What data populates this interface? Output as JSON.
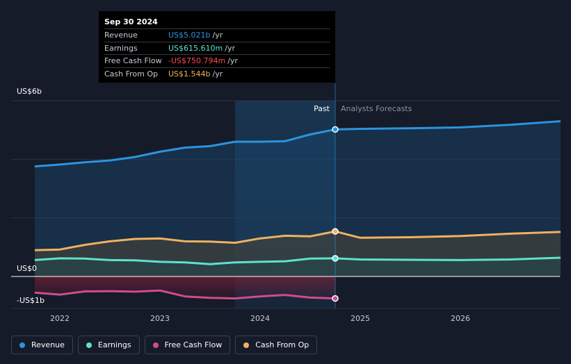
{
  "tooltip": {
    "date": "Sep 30 2024",
    "rows": [
      {
        "label": "Revenue",
        "value": "US$5.021b",
        "unit": "/yr",
        "color": "#2b94e0"
      },
      {
        "label": "Earnings",
        "value": "US$615.610m",
        "unit": "/yr",
        "color": "#5ee2cc"
      },
      {
        "label": "Free Cash Flow",
        "value": "-US$750.794m",
        "unit": "/yr",
        "color": "#ff4c4c"
      },
      {
        "label": "Cash From Op",
        "value": "US$1.544b",
        "unit": "/yr",
        "color": "#f2b160"
      }
    ]
  },
  "legend": [
    {
      "label": "Revenue",
      "color": "#2b94e0"
    },
    {
      "label": "Earnings",
      "color": "#5ee2cc"
    },
    {
      "label": "Free Cash Flow",
      "color": "#d14b8e"
    },
    {
      "label": "Cash From Op",
      "color": "#f2b160"
    }
  ],
  "chart_data": {
    "type": "line",
    "unit": "US$ billions",
    "y_labels": [
      {
        "text": "US$6b",
        "value": 6
      },
      {
        "text": "US$0",
        "value": 0
      },
      {
        "text": "-US$1b",
        "value": -1
      }
    ],
    "ylim": [
      -1,
      6
    ],
    "xlim": [
      2021.7,
      2027.0
    ],
    "x_ticks": [
      {
        "label": "2022",
        "value": 2022
      },
      {
        "label": "2023",
        "value": 2023
      },
      {
        "label": "2024",
        "value": 2024
      },
      {
        "label": "2025",
        "value": 2025
      },
      {
        "label": "2026",
        "value": 2026
      }
    ],
    "past_label": "Past",
    "forecast_label": "Analysts Forecasts",
    "divider_x": 2024.75,
    "highlight_start_x": 2023.75,
    "series": [
      {
        "name": "Revenue",
        "color": "#2b94e0",
        "area": true,
        "past": [
          [
            2021.75,
            3.76
          ],
          [
            2022,
            3.82
          ],
          [
            2022.25,
            3.9
          ],
          [
            2022.5,
            3.96
          ],
          [
            2022.75,
            4.08
          ],
          [
            2023,
            4.26
          ],
          [
            2023.25,
            4.4
          ],
          [
            2023.5,
            4.45
          ],
          [
            2023.75,
            4.6
          ],
          [
            2024,
            4.6
          ],
          [
            2024.25,
            4.62
          ],
          [
            2024.5,
            4.85
          ],
          [
            2024.75,
            5.02
          ]
        ],
        "forecast": [
          [
            2024.75,
            5.02
          ],
          [
            2025,
            5.04
          ],
          [
            2025.5,
            5.06
          ],
          [
            2026,
            5.09
          ],
          [
            2026.5,
            5.18
          ],
          [
            2027,
            5.3
          ]
        ]
      },
      {
        "name": "Cash From Op",
        "color": "#f2b160",
        "area": true,
        "past": [
          [
            2021.75,
            0.9
          ],
          [
            2022,
            0.92
          ],
          [
            2022.25,
            1.08
          ],
          [
            2022.5,
            1.2
          ],
          [
            2022.75,
            1.28
          ],
          [
            2023,
            1.3
          ],
          [
            2023.25,
            1.2
          ],
          [
            2023.5,
            1.19
          ],
          [
            2023.75,
            1.15
          ],
          [
            2024,
            1.3
          ],
          [
            2024.25,
            1.39
          ],
          [
            2024.5,
            1.37
          ],
          [
            2024.75,
            1.54
          ]
        ],
        "forecast": [
          [
            2024.75,
            1.54
          ],
          [
            2025,
            1.32
          ],
          [
            2025.5,
            1.34
          ],
          [
            2026,
            1.38
          ],
          [
            2026.5,
            1.46
          ],
          [
            2027,
            1.52
          ]
        ]
      },
      {
        "name": "Earnings",
        "color": "#5ee2cc",
        "area": true,
        "past": [
          [
            2021.75,
            0.56
          ],
          [
            2022,
            0.62
          ],
          [
            2022.25,
            0.61
          ],
          [
            2022.5,
            0.56
          ],
          [
            2022.75,
            0.55
          ],
          [
            2023,
            0.5
          ],
          [
            2023.25,
            0.48
          ],
          [
            2023.5,
            0.42
          ],
          [
            2023.75,
            0.48
          ],
          [
            2024,
            0.5
          ],
          [
            2024.25,
            0.52
          ],
          [
            2024.5,
            0.61
          ],
          [
            2024.75,
            0.62
          ]
        ],
        "forecast": [
          [
            2024.75,
            0.62
          ],
          [
            2025,
            0.58
          ],
          [
            2025.5,
            0.57
          ],
          [
            2026,
            0.56
          ],
          [
            2026.5,
            0.58
          ],
          [
            2027,
            0.64
          ]
        ]
      },
      {
        "name": "Free Cash Flow",
        "color": "#d14b8e",
        "area": true,
        "past": [
          [
            2021.75,
            -0.55
          ],
          [
            2022,
            -0.62
          ],
          [
            2022.25,
            -0.51
          ],
          [
            2022.5,
            -0.5
          ],
          [
            2022.75,
            -0.52
          ],
          [
            2023,
            -0.48
          ],
          [
            2023.25,
            -0.68
          ],
          [
            2023.5,
            -0.73
          ],
          [
            2023.75,
            -0.75
          ],
          [
            2024,
            -0.68
          ],
          [
            2024.25,
            -0.63
          ],
          [
            2024.5,
            -0.72
          ],
          [
            2024.75,
            -0.75
          ]
        ],
        "forecast": []
      }
    ]
  }
}
